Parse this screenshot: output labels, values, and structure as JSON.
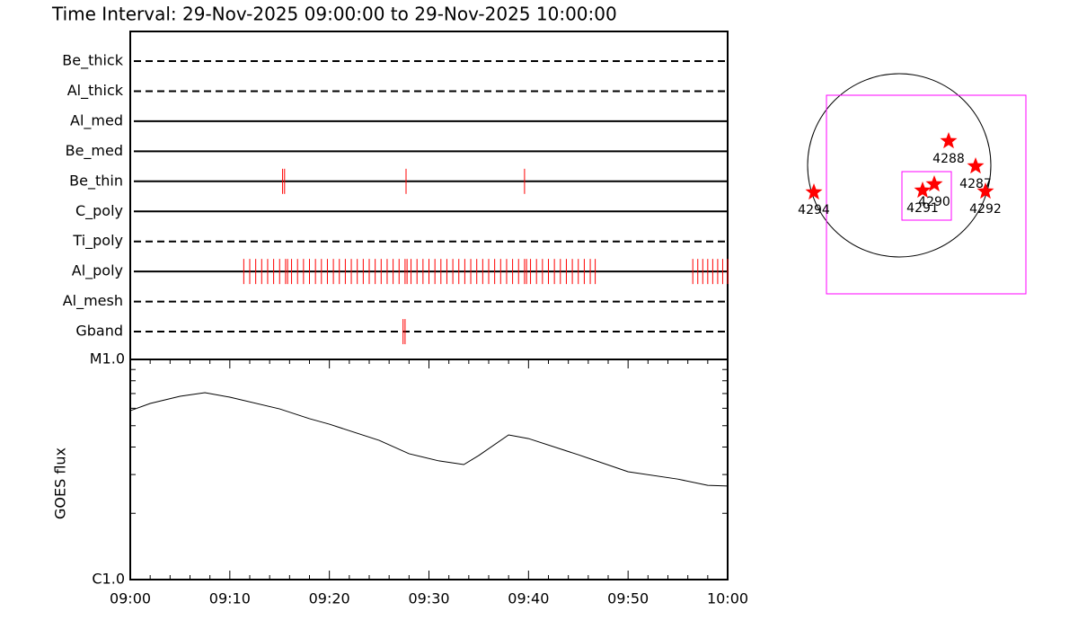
{
  "title": "Time Interval: 29-Nov-2025 09:00:00 to 29-Nov-2025 10:00:00",
  "chart_data": [
    {
      "type": "timeline",
      "categories": [
        "Be_thick",
        "Al_thick",
        "Al_med",
        "Be_med",
        "Be_thin",
        "C_poly",
        "Ti_poly",
        "Al_poly",
        "Al_mesh",
        "Gband"
      ],
      "line_styles": [
        "dashed",
        "dashed",
        "solid",
        "solid",
        "solid",
        "solid",
        "dashed",
        "solid",
        "dashed",
        "dashed"
      ],
      "events": [
        [],
        [],
        [],
        [],
        [
          15.3,
          15.5,
          27.7,
          39.6
        ],
        [],
        [],
        [
          11.4,
          12.0,
          12.6,
          13.2,
          13.8,
          14.4,
          15.0,
          15.6,
          15.8,
          16.2,
          16.8,
          17.4,
          18.0,
          18.6,
          19.2,
          19.8,
          20.4,
          21.0,
          21.6,
          22.2,
          22.8,
          23.4,
          24.0,
          24.6,
          25.2,
          25.8,
          26.4,
          27.0,
          27.6,
          27.8,
          28.2,
          28.8,
          29.4,
          30.0,
          30.6,
          31.2,
          31.8,
          32.4,
          33.0,
          33.6,
          34.2,
          34.8,
          35.4,
          36.0,
          36.6,
          37.2,
          37.8,
          38.4,
          39.0,
          39.6,
          39.8,
          40.2,
          40.8,
          41.4,
          42.0,
          42.6,
          43.2,
          43.8,
          44.4,
          45.0,
          45.6,
          46.2,
          46.7,
          56.5,
          57.0,
          57.5,
          58.0,
          58.5,
          59.0,
          59.5,
          60.0
        ],
        [],
        [
          27.4,
          27.6
        ]
      ],
      "color": "#ff0000",
      "xlim": [
        0,
        60
      ]
    },
    {
      "type": "line",
      "ylabel": "GOES flux",
      "x": [
        0,
        2,
        5,
        7.5,
        10,
        15,
        18,
        20,
        25,
        28,
        31,
        33.5,
        35,
        38,
        40,
        45,
        50,
        55,
        58,
        60
      ],
      "values": [
        5.85e-06,
        6.31e-06,
        6.8e-06,
        7.06e-06,
        6.74e-06,
        5.96e-06,
        5.38e-06,
        5.08e-06,
        4.29e-06,
        3.73e-06,
        3.46e-06,
        3.33e-06,
        3.66e-06,
        4.54e-06,
        4.37e-06,
        3.69e-06,
        3.09e-06,
        2.86e-06,
        2.68e-06,
        2.66e-06
      ],
      "color": "#000000",
      "xlim": [
        0,
        60
      ],
      "xticks": [
        {
          "value": 0,
          "label": "09:00"
        },
        {
          "value": 10,
          "label": "09:10"
        },
        {
          "value": 20,
          "label": "09:20"
        },
        {
          "value": 30,
          "label": "09:30"
        },
        {
          "value": 40,
          "label": "09:40"
        },
        {
          "value": 50,
          "label": "09:50"
        },
        {
          "value": 60,
          "label": "10:00"
        }
      ],
      "xminorticks": [
        2,
        4,
        6,
        8,
        12,
        14,
        16,
        18,
        22,
        24,
        26,
        28,
        32,
        34,
        36,
        38,
        42,
        44,
        46,
        48,
        52,
        54,
        56,
        58
      ],
      "ylim": [
        1e-06,
        1e-05
      ],
      "yticks": [
        {
          "value": 1e-06,
          "label": "C1.0"
        },
        {
          "value": 1e-05,
          "label": "M1.0"
        }
      ],
      "yminorticks": [
        2e-06,
        3e-06,
        4e-06,
        5e-06,
        6e-06,
        7e-06,
        8e-06,
        9e-06
      ],
      "log_scale": true
    }
  ],
  "map": {
    "regions": [
      "4288",
      "4287",
      "4290",
      "4291",
      "4292",
      "4294"
    ],
    "star_color": "#ff0000",
    "box_color": "#ff00ff"
  }
}
